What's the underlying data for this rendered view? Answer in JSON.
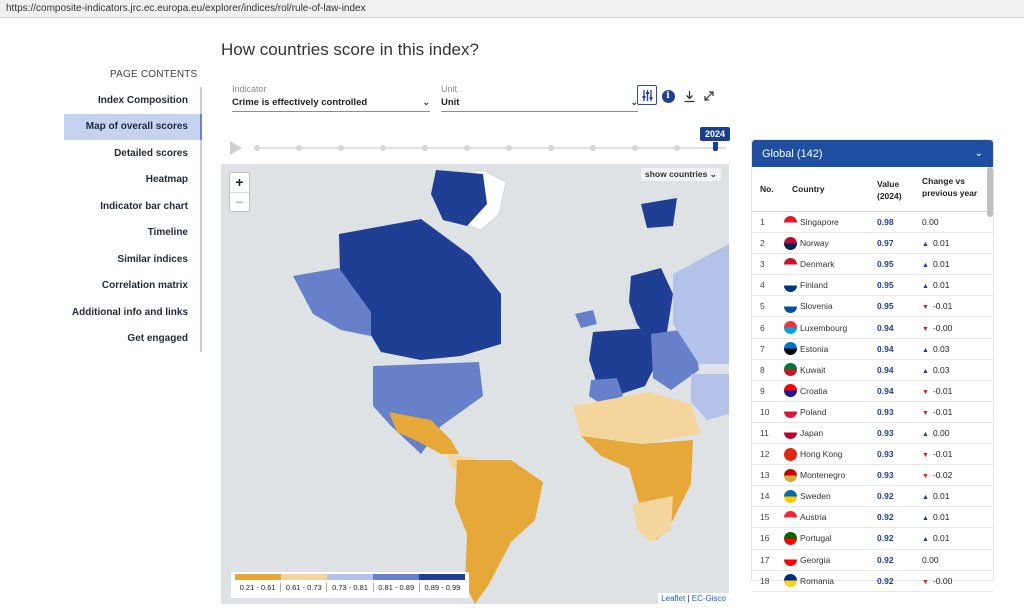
{
  "browser": {
    "url": "https://composite-indicators.jrc.ec.europa.eu/explorer/indices/rol/rule-of-law-index"
  },
  "heading": "How countries score in this index?",
  "toc": {
    "title": "PAGE CONTENTS",
    "items": [
      {
        "label": "Index Composition"
      },
      {
        "label": "Map of overall scores"
      },
      {
        "label": "Detailed scores"
      },
      {
        "label": "Heatmap"
      },
      {
        "label": "Indicator bar chart"
      },
      {
        "label": "Timeline"
      },
      {
        "label": "Similar indices"
      },
      {
        "label": "Correlation matrix"
      },
      {
        "label": "Additional info and links"
      },
      {
        "label": "Get engaged"
      }
    ],
    "active_index": 1
  },
  "filters": {
    "indicator": {
      "label": "Indicator",
      "value": "Crime is effectively controlled"
    },
    "unit": {
      "label": "Unit",
      "value": "Unit"
    }
  },
  "toolbar": {
    "icons": [
      "settings-sliders-icon",
      "info-icon",
      "download-icon",
      "expand-icon"
    ]
  },
  "timeline": {
    "selected_year": "2024",
    "progress": 1.0
  },
  "map": {
    "zoom_in": "+",
    "zoom_out": "−",
    "show_countries": "show countries",
    "legend": [
      {
        "range": "0.21 - 0.61",
        "color": "#e7a83a"
      },
      {
        "range": "0.61 - 0.73",
        "color": "#f3d59d"
      },
      {
        "range": "0.73 - 0.81",
        "color": "#b3c2e8"
      },
      {
        "range": "0.81 - 0.89",
        "color": "#6680c9"
      },
      {
        "range": "0.89 - 0.99",
        "color": "#1f3f94"
      }
    ],
    "attribution": {
      "leaflet": "Leaflet",
      "sep": " | ",
      "source": "EC-Gisco"
    }
  },
  "ranking": {
    "title": "Global (142)",
    "columns": {
      "no": "No.",
      "country": "Country",
      "value": "Value (2024)",
      "change": "Change vs previous year"
    },
    "rows": [
      {
        "no": "1",
        "country": "Singapore",
        "value": "0.98",
        "change": "0.00",
        "dir": "none",
        "flag": [
          "#e21b2c",
          "#ffffff"
        ]
      },
      {
        "no": "2",
        "country": "Norway",
        "value": "0.97",
        "change": "0.01",
        "dir": "up",
        "flag": [
          "#ba0c2f",
          "#00205b"
        ]
      },
      {
        "no": "3",
        "country": "Denmark",
        "value": "0.95",
        "change": "0.01",
        "dir": "up",
        "flag": [
          "#c8102e",
          "#ffffff"
        ]
      },
      {
        "no": "4",
        "country": "Finland",
        "value": "0.95",
        "change": "0.01",
        "dir": "up",
        "flag": [
          "#ffffff",
          "#003580"
        ]
      },
      {
        "no": "5",
        "country": "Slovenia",
        "value": "0.95",
        "change": "-0.01",
        "dir": "down",
        "flag": [
          "#ffffff",
          "#0051a0"
        ]
      },
      {
        "no": "6",
        "country": "Luxembourg",
        "value": "0.94",
        "change": "-0.00",
        "dir": "down",
        "flag": [
          "#ef3340",
          "#00a3e0"
        ]
      },
      {
        "no": "7",
        "country": "Estonia",
        "value": "0.94",
        "change": "0.03",
        "dir": "up",
        "flag": [
          "#0072ce",
          "#000000"
        ]
      },
      {
        "no": "8",
        "country": "Kuwait",
        "value": "0.94",
        "change": "0.03",
        "dir": "up",
        "flag": [
          "#007a3d",
          "#ce1126"
        ]
      },
      {
        "no": "9",
        "country": "Croatia",
        "value": "0.94",
        "change": "-0.01",
        "dir": "down",
        "flag": [
          "#ff0000",
          "#171796"
        ]
      },
      {
        "no": "10",
        "country": "Poland",
        "value": "0.93",
        "change": "-0.01",
        "dir": "down",
        "flag": [
          "#ffffff",
          "#dc143c"
        ]
      },
      {
        "no": "11",
        "country": "Japan",
        "value": "0.93",
        "change": "0.00",
        "dir": "up",
        "flag": [
          "#ffffff",
          "#bc002d"
        ]
      },
      {
        "no": "12",
        "country": "Hong Kong",
        "value": "0.93",
        "change": "-0.01",
        "dir": "down",
        "flag": [
          "#de2910",
          "#de2910"
        ]
      },
      {
        "no": "13",
        "country": "Montenegro",
        "value": "0.93",
        "change": "-0.02",
        "dir": "down",
        "flag": [
          "#c40308",
          "#d4af37"
        ]
      },
      {
        "no": "14",
        "country": "Sweden",
        "value": "0.92",
        "change": "0.01",
        "dir": "up",
        "flag": [
          "#006aa7",
          "#fecc00"
        ]
      },
      {
        "no": "15",
        "country": "Austria",
        "value": "0.92",
        "change": "0.01",
        "dir": "up",
        "flag": [
          "#ed2939",
          "#ffffff"
        ]
      },
      {
        "no": "16",
        "country": "Portugal",
        "value": "0.92",
        "change": "0.01",
        "dir": "up",
        "flag": [
          "#006600",
          "#ff0000"
        ]
      },
      {
        "no": "17",
        "country": "Georgia",
        "value": "0.92",
        "change": "0.00",
        "dir": "none",
        "flag": [
          "#ffffff",
          "#ff0000"
        ]
      },
      {
        "no": "18",
        "country": "Romania",
        "value": "0.92",
        "change": "-0.00",
        "dir": "down",
        "flag": [
          "#002b7f",
          "#fcd116"
        ]
      }
    ]
  }
}
